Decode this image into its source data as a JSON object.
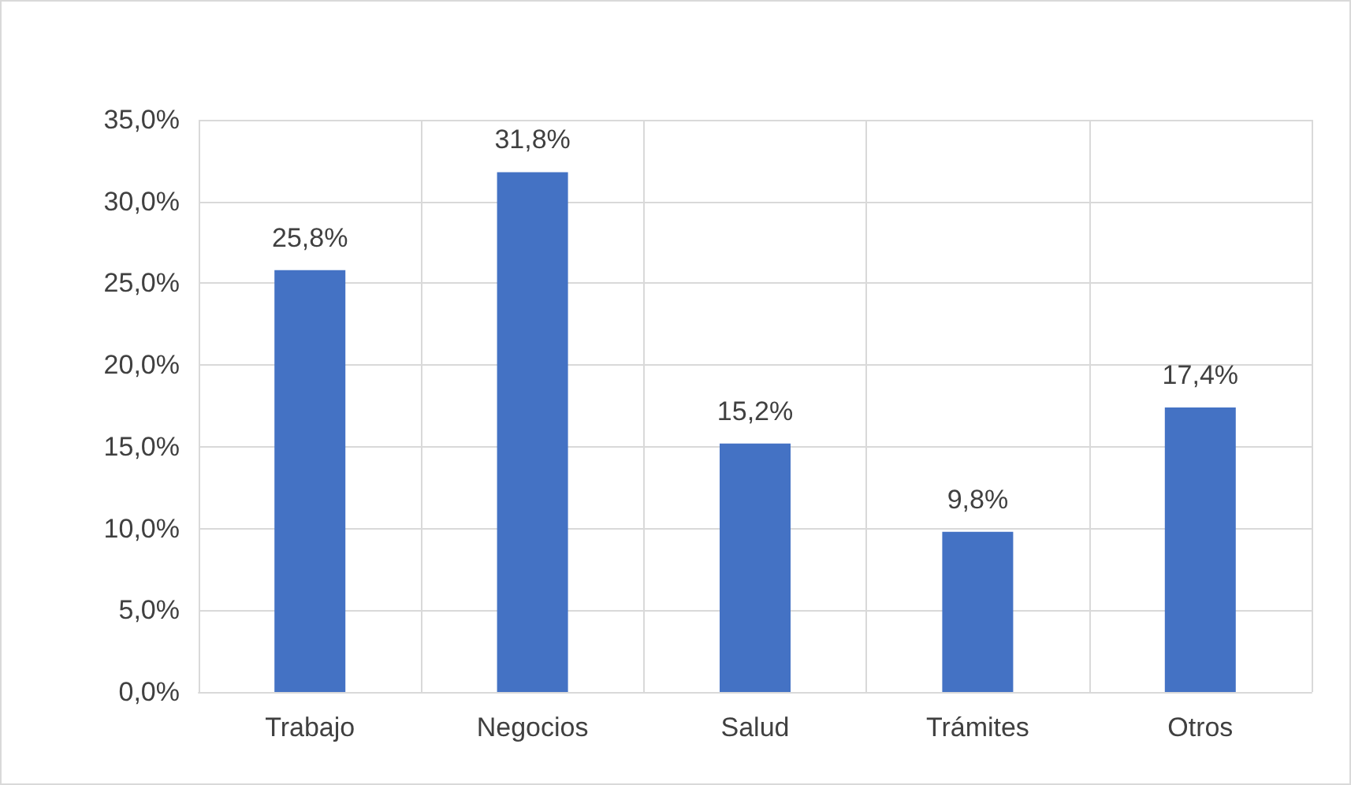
{
  "chart_data": {
    "type": "bar",
    "categories": [
      "Trabajo",
      "Negocios",
      "Salud",
      "Trámites",
      "Otros"
    ],
    "values": [
      25.8,
      31.8,
      15.2,
      9.8,
      17.4
    ],
    "value_labels": [
      "25,8%",
      "31,8%",
      "15,2%",
      "9,8%",
      "17,4%"
    ],
    "color": "#4472c4",
    "ylim": [
      0,
      35
    ],
    "yticks": [
      {
        "value": 0,
        "label": "0,0%"
      },
      {
        "value": 5,
        "label": "5,0%"
      },
      {
        "value": 10,
        "label": "10,0%"
      },
      {
        "value": 15,
        "label": "15,0%"
      },
      {
        "value": 20,
        "label": "20,0%"
      },
      {
        "value": 25,
        "label": "25,0%"
      },
      {
        "value": 30,
        "label": "30,0%"
      },
      {
        "value": 35,
        "label": "35,0%"
      }
    ],
    "grid": true
  }
}
